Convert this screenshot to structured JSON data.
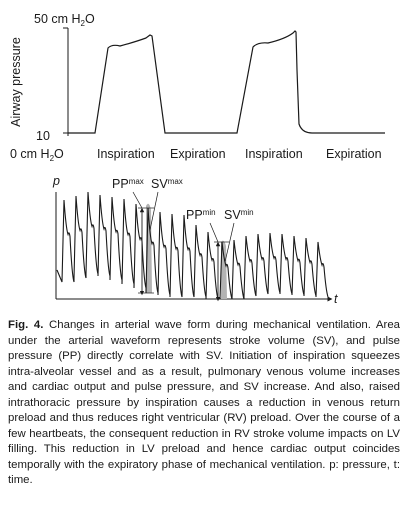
{
  "top_chart": {
    "y_label": "Airway pressure",
    "y_max_label": "50 cm H",
    "y_max_sub": "2",
    "y_max_tail": "O",
    "y_min_label": "10",
    "origin_label": "0 cm H",
    "origin_sub": "2",
    "origin_tail": "O",
    "phase_labels": [
      "Inspiration",
      "Expiration",
      "Inspiration",
      "Expiration"
    ]
  },
  "bottom_chart": {
    "y_label": "p",
    "x_label": "t",
    "pp_max": {
      "main": "PP",
      "sub": "max"
    },
    "sv_max": {
      "main": "SV",
      "sub": "max"
    },
    "pp_min": {
      "main": "PP",
      "sub": "min"
    },
    "sv_min": {
      "main": "SV",
      "sub": "min"
    }
  },
  "caption": {
    "label": "Fig. 4.",
    "text": "Changes in arterial wave form during mechanical ventilation. Area under the arterial waveform represents stroke volume (SV), and pulse pressure (PP) directly correlate with SV. Initiation of inspiration squeezes intra-alveolar vessel and as a result, pulmonary venous volume increases and cardiac output and pulse pressure, and SV increase. And also, raised intrathoracic pressure by inspiration causes a reduction in venous return preload and thus reduces right ventricular (RV) preload. Over the course of a few heartbeats, the consequent reduction in RV stroke volume impacts on LV filling. This reduction in LV preload and hence cardiac output coincides temporally with the expiratory phase of mechanical ventilation. p: pressure, t: time."
  }
}
